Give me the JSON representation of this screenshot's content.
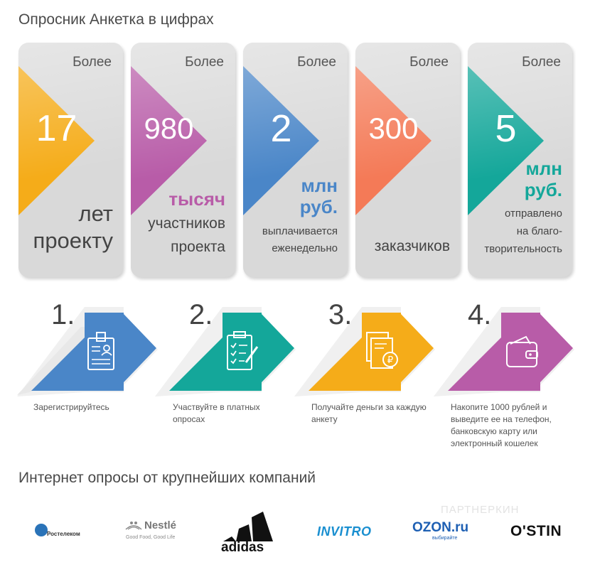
{
  "header": {
    "title": "Опросник Анкетка в цифрах"
  },
  "stats": [
    {
      "more": "Более",
      "number": "17",
      "unit": "",
      "desc": [
        "лет",
        "проекту"
      ],
      "color": "#f5ac19",
      "unit_color": ""
    },
    {
      "more": "Более",
      "number": "980",
      "unit": "тысяч",
      "desc": [
        "участников",
        "проекта"
      ],
      "color": "#b85ca8",
      "unit_color": "#b85ca8"
    },
    {
      "more": "Более",
      "number": "2",
      "unit": "млн руб.",
      "desc": [
        "выплачивается",
        "еженедельно"
      ],
      "color": "#4a86c8",
      "unit_color": "#4a86c8"
    },
    {
      "more": "Более",
      "number": "300",
      "unit": "",
      "desc": [
        "заказчиков"
      ],
      "color": "#f47a57",
      "unit_color": ""
    },
    {
      "more": "Более",
      "number": "5",
      "unit": "млн руб.",
      "desc": [
        "отправлено",
        "на благо-",
        "творительность"
      ],
      "color": "#14a79a",
      "unit_color": "#14a79a"
    }
  ],
  "steps": [
    {
      "number": "1.",
      "text": "Зарегистрируйтесь",
      "color": "#4a86c8",
      "icon": "id-card-icon"
    },
    {
      "number": "2.",
      "text": "Участвуйте в платных опросах",
      "color": "#14a79a",
      "icon": "clipboard-checklist-icon"
    },
    {
      "number": "3.",
      "text": "Получайте деньги за каждую анкету",
      "color": "#f5ac19",
      "icon": "ruble-document-icon"
    },
    {
      "number": "4.",
      "text": "Накопите 1000 рублей и выведите ее на телефон, банковскую карту или электронный кошелек",
      "color": "#b85ca8",
      "icon": "wallet-icon"
    }
  ],
  "companies": {
    "title": "Интернет опросы от крупнейших компаний",
    "logos": {
      "rostelecom": "Ростелеком",
      "nestle": "Nestlé",
      "nestle_tagline": "Good Food, Good Life",
      "adidas": "adidas",
      "invitro": "INVITRO",
      "ozon": "OZON.ru",
      "ozon_tagline": "выбирайте",
      "ostin": "O'STIN"
    }
  },
  "watermark": "ПАРТНЕРКИН"
}
